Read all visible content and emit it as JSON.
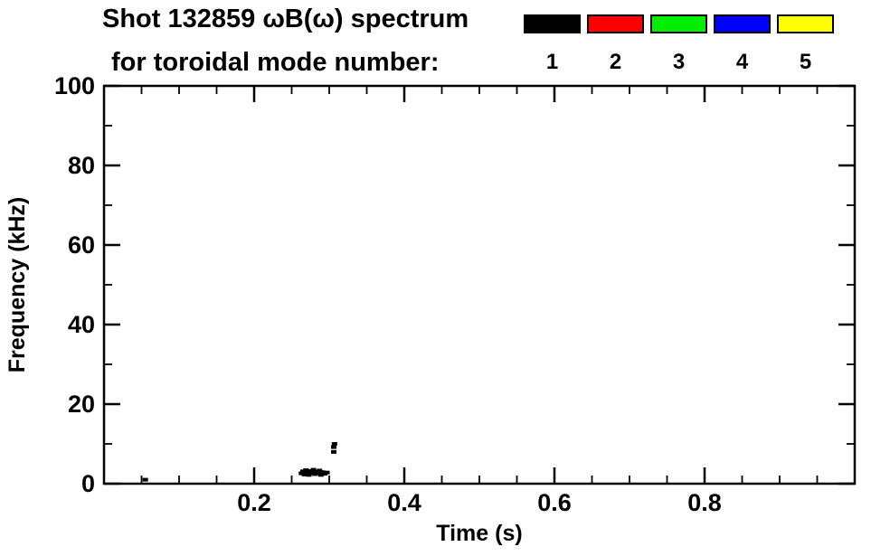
{
  "figure": {
    "title_line1": "Shot 132859 ωB(ω) spectrum",
    "title_line2": "for toroidal mode number:"
  },
  "legend": {
    "items": [
      {
        "label": "1",
        "color": "#000000"
      },
      {
        "label": "2",
        "color": "#ff0000"
      },
      {
        "label": "3",
        "color": "#00ee00"
      },
      {
        "label": "4",
        "color": "#0000ff"
      },
      {
        "label": "5",
        "color": "#ffff00"
      }
    ]
  },
  "chart_data": {
    "type": "scatter",
    "title": "Shot 132859 ωB(ω) spectrum for toroidal mode number: 1 2 3 4 5",
    "xlabel": "Time (s)",
    "ylabel": "Frequency (kHz)",
    "xlim": [
      0,
      1.0
    ],
    "ylim": [
      0,
      100
    ],
    "xticks": {
      "major": [
        0.2,
        0.4,
        0.6,
        0.8
      ],
      "labels": [
        "0.2",
        "0.4",
        "0.6",
        "0.8"
      ],
      "minor_step": 0.05
    },
    "yticks": {
      "major": [
        0,
        20,
        40,
        60,
        80,
        100
      ],
      "labels": [
        "0",
        "20",
        "40",
        "60",
        "80",
        "100"
      ],
      "minor_step": 10
    },
    "grid": false,
    "legend_position": "top-right",
    "series": [
      {
        "name": "toroidal mode n=1",
        "color": "#000000",
        "points": [
          [
            0.055,
            1.0
          ],
          [
            0.263,
            2.6
          ],
          [
            0.265,
            3.1
          ],
          [
            0.267,
            2.3
          ],
          [
            0.269,
            3.4
          ],
          [
            0.271,
            2.8
          ],
          [
            0.273,
            2.2
          ],
          [
            0.275,
            3.2
          ],
          [
            0.277,
            2.7
          ],
          [
            0.279,
            3.5
          ],
          [
            0.281,
            2.4
          ],
          [
            0.283,
            3.0
          ],
          [
            0.285,
            2.6
          ],
          [
            0.287,
            3.3
          ],
          [
            0.289,
            2.2
          ],
          [
            0.291,
            2.9
          ],
          [
            0.294,
            2.5
          ],
          [
            0.297,
            2.8
          ],
          [
            0.306,
            8.0
          ],
          [
            0.306,
            9.2
          ],
          [
            0.307,
            10.0
          ]
        ]
      },
      {
        "name": "toroidal mode n=2",
        "color": "#ff0000",
        "points": []
      },
      {
        "name": "toroidal mode n=3",
        "color": "#00ee00",
        "points": []
      },
      {
        "name": "toroidal mode n=4",
        "color": "#0000ff",
        "points": []
      },
      {
        "name": "toroidal mode n=5",
        "color": "#ffff00",
        "points": []
      }
    ]
  }
}
